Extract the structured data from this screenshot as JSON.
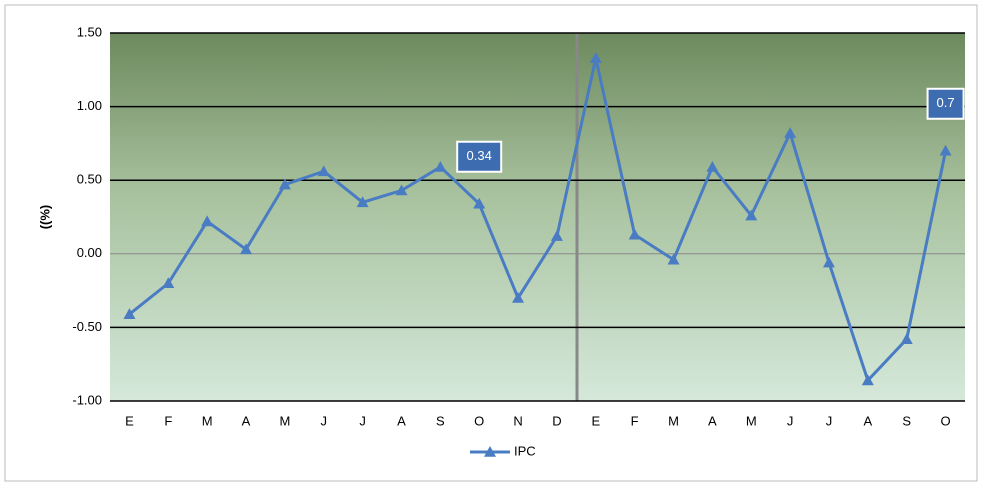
{
  "chart_data": {
    "type": "line",
    "y_label": "((%)",
    "categories": [
      "E",
      "F",
      "M",
      "A",
      "M",
      "J",
      "J",
      "A",
      "S",
      "O",
      "N",
      "D",
      "E",
      "F",
      "M",
      "A",
      "M",
      "J",
      "J",
      "A",
      "S",
      "O"
    ],
    "series": [
      {
        "name": "IPC",
        "color": "#4a7cc4",
        "values": [
          -0.41,
          -0.2,
          0.22,
          0.03,
          0.47,
          0.56,
          0.35,
          0.43,
          0.59,
          0.34,
          -0.3,
          0.12,
          1.33,
          0.13,
          -0.04,
          0.59,
          0.26,
          0.82,
          -0.06,
          -0.86,
          -0.58,
          0.7
        ],
        "value_labels": [
          null,
          null,
          null,
          null,
          null,
          null,
          null,
          null,
          null,
          "0.34",
          null,
          null,
          null,
          null,
          null,
          null,
          null,
          null,
          null,
          null,
          null,
          "0.7"
        ]
      }
    ],
    "ylim": [
      -1.0,
      1.5
    ],
    "yticks": [
      {
        "value": 1.5,
        "label": "1.50"
      },
      {
        "value": 1.0,
        "label": "1.00"
      },
      {
        "value": 0.5,
        "label": "0.50"
      },
      {
        "value": 0,
        "label": "0.00"
      },
      {
        "value": -0.5,
        "label": "-0.50"
      },
      {
        "value": -1.0,
        "label": "-1.00"
      }
    ],
    "grid": true,
    "legend": "bottom"
  }
}
